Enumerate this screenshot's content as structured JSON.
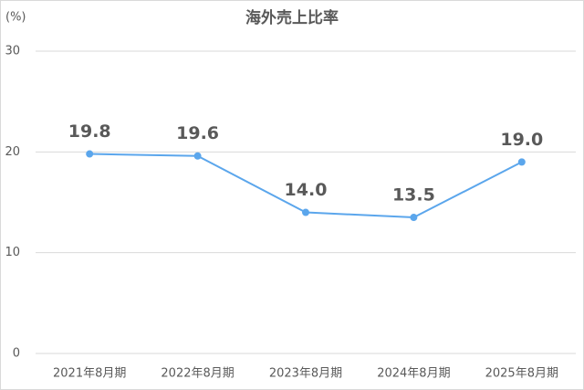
{
  "chart_data": {
    "type": "line",
    "title": "海外売上比率",
    "ylabel": "(%)",
    "categories": [
      "2021年8月期",
      "2022年8月期",
      "2023年8月期",
      "2024年8月期",
      "2025年8月期"
    ],
    "values": [
      19.8,
      19.6,
      14.0,
      13.5,
      19.0
    ],
    "value_labels": [
      "19.8",
      "19.6",
      "14.0",
      "13.5",
      "19.0"
    ],
    "color": "#5ba6ec",
    "ylim": [
      0,
      30
    ],
    "yticks": [
      0,
      10,
      20,
      30
    ],
    "grid": true
  }
}
